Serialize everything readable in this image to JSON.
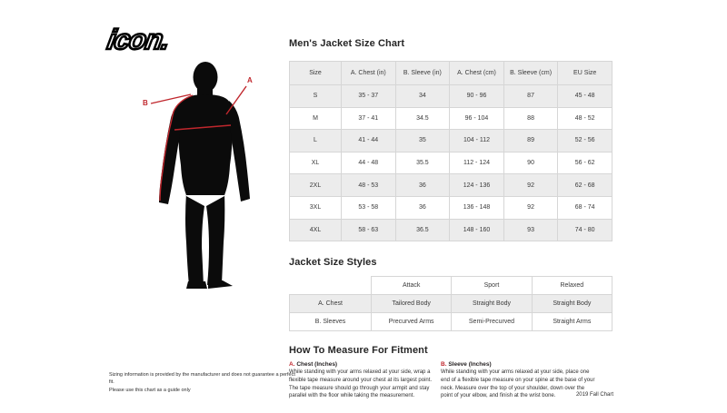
{
  "logo": {
    "text": "icon."
  },
  "figure": {
    "label_a": "A",
    "label_b": "B"
  },
  "size_chart": {
    "title": "Men's Jacket Size Chart",
    "columns": [
      "Size",
      "A. Chest (in)",
      "B. Sleeve (in)",
      "A. Chest (cm)",
      "B. Sleeve (cm)",
      "EU Size"
    ],
    "rows": [
      [
        "S",
        "35 - 37",
        "34",
        "90 - 96",
        "87",
        "45 - 48"
      ],
      [
        "M",
        "37 - 41",
        "34.5",
        "96 - 104",
        "88",
        "48 - 52"
      ],
      [
        "L",
        "41 - 44",
        "35",
        "104 - 112",
        "89",
        "52 - 56"
      ],
      [
        "XL",
        "44 - 48",
        "35.5",
        "112 - 124",
        "90",
        "56 - 62"
      ],
      [
        "2XL",
        "48 - 53",
        "36",
        "124 - 136",
        "92",
        "62 - 68"
      ],
      [
        "3XL",
        "53 - 58",
        "36",
        "136 - 148",
        "92",
        "68 - 74"
      ],
      [
        "4XL",
        "58 - 63",
        "36.5",
        "148 - 160",
        "93",
        "74 - 80"
      ]
    ]
  },
  "styles_chart": {
    "title": "Jacket Size Styles",
    "columns": [
      "",
      "Attack",
      "Sport",
      "Relaxed"
    ],
    "rows": [
      [
        "A. Chest",
        "Tailored Body",
        "Straight Body",
        "Straight Body"
      ],
      [
        "B. Sleeves",
        "Precurved Arms",
        "Semi-Precurved",
        "Straight Arms"
      ]
    ]
  },
  "how_to_measure": {
    "title": "How To Measure For Fitment",
    "items": [
      {
        "letter": "A.",
        "heading": "Chest (Inches)",
        "body": "While standing with your arms relaxed at your side, wrap a flexible tape measure around your chest at its largest point. The tape measure should go through your armpit and stay parallel with the floor while taking the measurement."
      },
      {
        "letter": "B.",
        "heading": "Sleeve (Inches)",
        "body": "While standing with your arms relaxed at your side, place one end of a flexible tape measure on your spine at the base of your neck. Measure over the top of your shoulder, down over the point of your elbow, and finish at the wrist bone."
      }
    ]
  },
  "footer": {
    "disclaimer_line1": "Sizing information is provided by the manufacturer and does not guarantee a perfect fit.",
    "disclaimer_line2": "Please use this chart as a guide only",
    "edition": "2019 Fall Chart"
  },
  "colors": {
    "accent_red": "#c0272d",
    "table_fill": "#ececec",
    "table_border": "#d6d6d6",
    "text": "#231f20",
    "silhouette": "#0b0b0b"
  }
}
